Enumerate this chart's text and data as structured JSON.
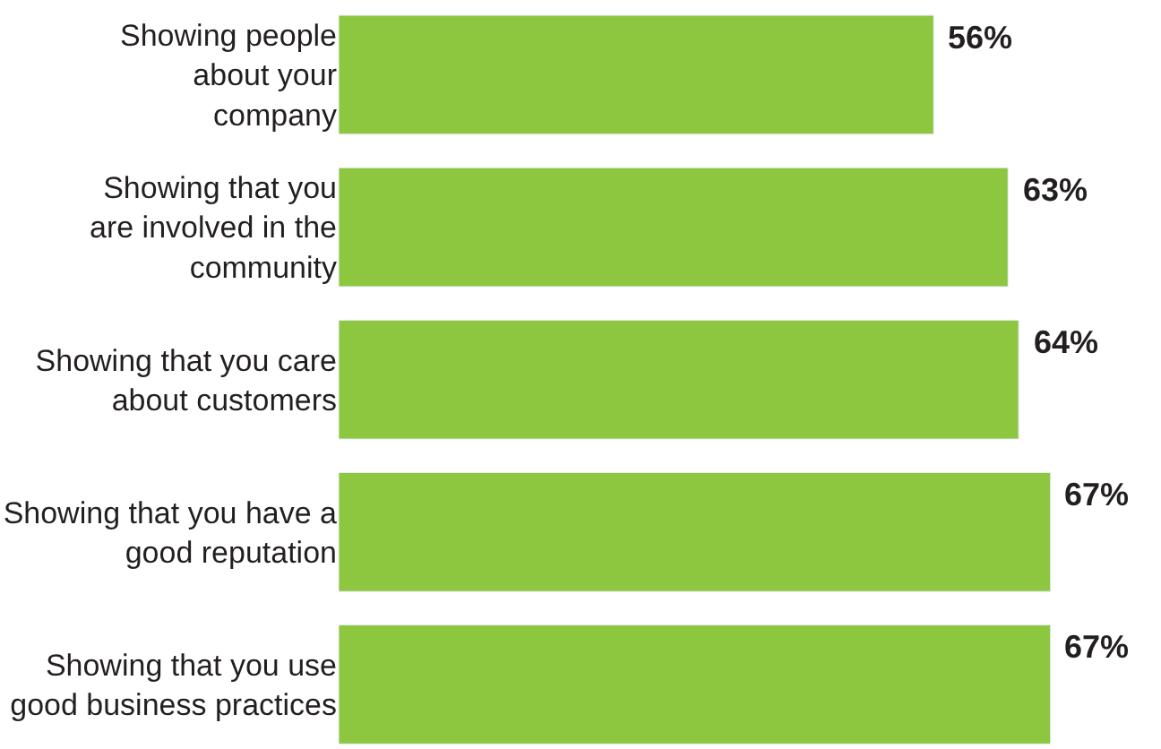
{
  "chart_data": {
    "type": "bar",
    "orientation": "horizontal",
    "categories": [
      "Showing people\nabout your\ncompany",
      "Showing that you\nare involved in the\ncommunity",
      "Showing that you care\nabout customers",
      "Showing that you have a\ngood reputation",
      "Showing that you use\ngood business practices"
    ],
    "values": [
      56,
      63,
      64,
      67,
      67
    ],
    "value_labels": [
      "56%",
      "63%",
      "64%",
      "67%",
      "67%"
    ],
    "color": "#8dc63f",
    "tick_labels": "y"
  }
}
